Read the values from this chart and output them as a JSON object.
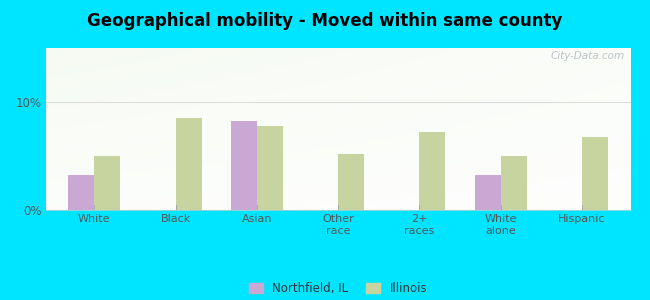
{
  "title": "Geographical mobility - Moved within same county",
  "categories": [
    "White",
    "Black",
    "Asian",
    "Other\nrace",
    "2+\nraces",
    "White\nalone",
    "Hispanic"
  ],
  "northfield": [
    3.2,
    0.0,
    8.2,
    0.0,
    0.0,
    3.2,
    0.0
  ],
  "illinois": [
    5.0,
    8.5,
    7.8,
    5.2,
    7.2,
    5.0,
    6.8
  ],
  "northfield_color": "#c9a8d4",
  "illinois_color": "#c8d4a0",
  "background_outer": "#00e5ff",
  "yticks": [
    0,
    10
  ],
  "ylim": [
    0,
    15
  ],
  "bar_width": 0.32,
  "legend_northfield": "Northfield, IL",
  "legend_illinois": "Illinois",
  "watermark": "City-Data.com"
}
